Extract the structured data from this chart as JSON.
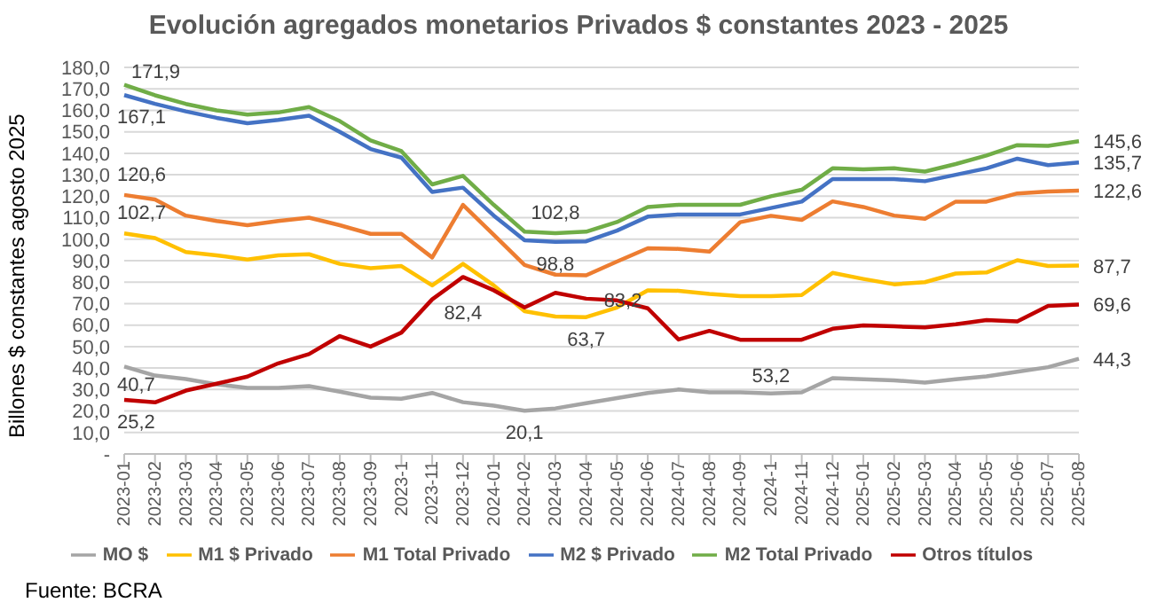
{
  "chart_data": {
    "type": "line",
    "title": "Evolución agregados monetarios Privados $ constantes 2023 - 2025",
    "ylabel": "Billones $ constantes agosto 2025",
    "annotations": [
      "Fuente: BCRA"
    ],
    "categories": [
      "2023-01",
      "2023-02",
      "2023-03",
      "2023-04",
      "2023-05",
      "2023-06",
      "2023-07",
      "2023-08",
      "2023-09",
      "2023-1",
      "2023-11",
      "2023-12",
      "2024-01",
      "2024-02",
      "2024-03",
      "2024-04",
      "2024-05",
      "2024-06",
      "2024-07",
      "2024-08",
      "2024-09",
      "2024-1",
      "2024-11",
      "2024-12",
      "2025-01",
      "2025-02",
      "2025-03",
      "2025-04",
      "2025-05",
      "2025-06",
      "2025-07",
      "2025-08"
    ],
    "series": [
      {
        "name": "MO $",
        "color": "#a5a5a5",
        "values": [
          40.7,
          36.5,
          34.9,
          32.4,
          30.8,
          30.8,
          31.6,
          29,
          26.2,
          25.7,
          28.4,
          24.1,
          22.5,
          20.1,
          21.2,
          23.6,
          26,
          28.4,
          30,
          28.7,
          28.7,
          28.2,
          28.7,
          35.3,
          34.8,
          34.3,
          33.2,
          34.8,
          36.1,
          38.3,
          40.4,
          44.3
        ],
        "value_labels": [
          "40,7",
          null,
          null,
          null,
          null,
          null,
          null,
          null,
          null,
          null,
          null,
          null,
          null,
          "20,1",
          null,
          null,
          null,
          null,
          null,
          null,
          null,
          null,
          null,
          null,
          null,
          null,
          null,
          null,
          null,
          null,
          null,
          "44,3"
        ]
      },
      {
        "name": "M1 $ Privado",
        "color": "#ffc000",
        "values": [
          102.7,
          100.5,
          94,
          92.5,
          90.5,
          92.5,
          93,
          88.5,
          86.5,
          87.5,
          78.5,
          88.5,
          78.5,
          66.5,
          64,
          63.7,
          68.2,
          76.2,
          76,
          74.5,
          73.5,
          73.5,
          74,
          84.3,
          81.5,
          79,
          80,
          84,
          84.5,
          90.2,
          87.5,
          87.7
        ],
        "value_labels": [
          "102,7",
          null,
          null,
          null,
          null,
          null,
          null,
          null,
          null,
          null,
          null,
          null,
          null,
          null,
          null,
          "63,7",
          null,
          null,
          null,
          null,
          null,
          null,
          null,
          null,
          null,
          null,
          null,
          null,
          null,
          null,
          null,
          "87,7"
        ]
      },
      {
        "name": "M1 Total Privado",
        "color": "#ed7d31",
        "values": [
          120.6,
          118.5,
          111,
          108.5,
          106.5,
          108.5,
          110,
          106.5,
          102.5,
          102.5,
          91.5,
          116,
          102,
          88,
          83.5,
          83.2,
          89.6,
          95.8,
          95.5,
          94.2,
          107.9,
          110.9,
          109,
          117.6,
          115,
          111,
          109.5,
          117.5,
          117.5,
          121.3,
          122.2,
          122.6
        ],
        "value_labels": [
          "120,6",
          null,
          null,
          null,
          null,
          null,
          null,
          null,
          null,
          null,
          null,
          null,
          null,
          null,
          null,
          "83,2",
          null,
          null,
          null,
          null,
          null,
          null,
          null,
          null,
          null,
          null,
          null,
          null,
          null,
          null,
          null,
          "122,6"
        ]
      },
      {
        "name": "M2 $ Privado",
        "color": "#4472c4",
        "values": [
          167.1,
          163,
          159.5,
          156.5,
          154,
          155.5,
          157.5,
          150,
          142,
          138,
          122,
          124,
          111,
          99.5,
          98.8,
          99,
          104,
          110.5,
          111.5,
          111.5,
          111.5,
          114.5,
          117.5,
          128,
          128,
          128,
          127,
          130,
          133,
          137.5,
          134.5,
          135.7
        ],
        "value_labels": [
          "167,1",
          null,
          null,
          null,
          null,
          null,
          null,
          null,
          null,
          null,
          null,
          null,
          null,
          null,
          "98,8",
          null,
          null,
          null,
          null,
          null,
          null,
          null,
          null,
          null,
          null,
          null,
          null,
          null,
          null,
          null,
          null,
          "135,7"
        ]
      },
      {
        "name": "M2 Total Privado",
        "color": "#70ad47",
        "values": [
          171.9,
          167,
          163,
          160,
          158,
          159,
          161.5,
          155,
          146,
          141,
          125.5,
          129.5,
          116,
          103.5,
          102.8,
          103.5,
          108,
          115,
          116,
          116,
          116,
          120,
          123,
          133,
          132.5,
          133,
          131.5,
          135,
          139,
          143.8,
          143.5,
          145.6
        ],
        "value_labels": [
          "171,9",
          null,
          null,
          null,
          null,
          null,
          null,
          null,
          null,
          null,
          null,
          null,
          null,
          null,
          "102,8",
          null,
          null,
          null,
          null,
          null,
          null,
          null,
          null,
          null,
          null,
          null,
          null,
          null,
          null,
          null,
          null,
          "145,6"
        ]
      },
      {
        "name": "Otros títulos",
        "color": "#c00000",
        "values": [
          25.2,
          24,
          29.5,
          32.7,
          36,
          42.2,
          46.5,
          54.9,
          50,
          56.5,
          72,
          82.4,
          76.2,
          68.2,
          75,
          72.3,
          71.5,
          67.8,
          53.3,
          57.3,
          53.2,
          53.2,
          53.2,
          58.3,
          59.9,
          59.4,
          58.9,
          60.4,
          62.3,
          61.7,
          68.9,
          69.6
        ],
        "value_labels": [
          "25,2",
          null,
          null,
          null,
          null,
          null,
          null,
          null,
          null,
          null,
          null,
          "82,4",
          null,
          null,
          null,
          null,
          null,
          null,
          null,
          null,
          null,
          "53,2",
          null,
          null,
          null,
          null,
          null,
          null,
          null,
          null,
          null,
          "69,6"
        ]
      }
    ],
    "ylim": [
      0,
      180
    ],
    "yticks": [
      {
        "value": 0,
        "label": "-"
      },
      {
        "value": 10,
        "label": "10,0"
      },
      {
        "value": 20,
        "label": "20,0"
      },
      {
        "value": 30,
        "label": "30,0"
      },
      {
        "value": 40,
        "label": "40,0"
      },
      {
        "value": 50,
        "label": "50,0"
      },
      {
        "value": 60,
        "label": "60,0"
      },
      {
        "value": 70,
        "label": "70,0"
      },
      {
        "value": 80,
        "label": "80,0"
      },
      {
        "value": 90,
        "label": "90,0"
      },
      {
        "value": 100,
        "label": "100,0"
      },
      {
        "value": 110,
        "label": "110,0"
      },
      {
        "value": 120,
        "label": "120,0"
      },
      {
        "value": 130,
        "label": "130,0"
      },
      {
        "value": 140,
        "label": "140,0"
      },
      {
        "value": 150,
        "label": "150,0"
      },
      {
        "value": 160,
        "label": "160,0"
      },
      {
        "value": 170,
        "label": "170,0"
      },
      {
        "value": 180,
        "label": "180,0"
      }
    ],
    "grid": "y",
    "legend": "bottom",
    "marker": "none",
    "line_style": "solid"
  }
}
